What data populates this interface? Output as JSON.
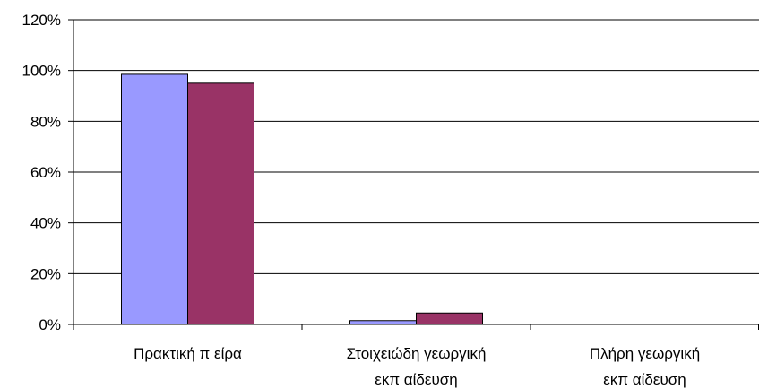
{
  "chart_data": {
    "type": "bar",
    "title": "",
    "xlabel": "",
    "ylabel": "",
    "categories": [
      [
        "Πρακτική π είρα"
      ],
      [
        "Στοιχειώδη γεωργική",
        "εκπ αίδευση"
      ],
      [
        "Πλήρη γεωργική",
        "εκπ αίδευση"
      ]
    ],
    "series": [
      {
        "color": "#9999FF",
        "values": [
          98.5,
          1.5,
          0
        ]
      },
      {
        "color": "#993366",
        "values": [
          95,
          4.5,
          0
        ]
      }
    ],
    "ylim": [
      0,
      120
    ],
    "yticks": [
      0,
      20,
      40,
      60,
      80,
      100,
      120
    ],
    "ytick_labels": [
      "0%",
      "20%",
      "40%",
      "60%",
      "80%",
      "100%",
      "120%"
    ],
    "grid": true,
    "legend": "none"
  }
}
